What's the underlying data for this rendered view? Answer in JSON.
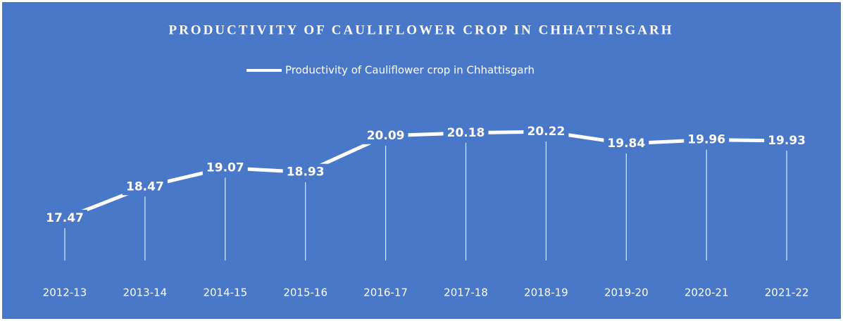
{
  "chart_data": {
    "type": "line",
    "title": "PRODUCTIVITY OF CAULIFLOWER CROP IN CHHATTISGARH",
    "categories": [
      "2012-13",
      "2013-14",
      "2014-15",
      "2015-16",
      "2016-17",
      "2017-18",
      "2018-19",
      "2019-20",
      "2020-21",
      "2021-22"
    ],
    "series": [
      {
        "name": "Productivity of Cauliflower crop in Chhattisgarh",
        "color": "#ffffff",
        "values": [
          17.47,
          18.47,
          19.07,
          18.93,
          20.09,
          20.18,
          20.22,
          19.84,
          19.96,
          19.93
        ]
      }
    ],
    "legend": "top",
    "background": "#4a78c8"
  }
}
